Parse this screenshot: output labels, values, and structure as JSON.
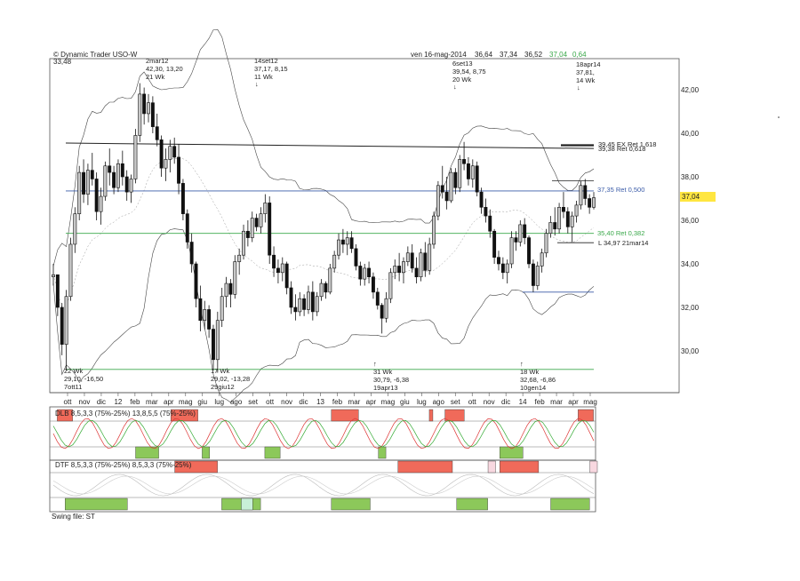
{
  "header": {
    "copyright": "© Dynamic Trader  USO-W",
    "low_value": "33,48",
    "date_label": "ven 16-mag-2014",
    "open": "36,64",
    "high": "37,34",
    "low": "36,52",
    "close": "37,04",
    "change": "0,64"
  },
  "current_price_tag": "37,04",
  "price_axis": [
    "42,00",
    "40,00",
    "38,00",
    "36,00",
    "34,00",
    "32,00",
    "30,00"
  ],
  "time_axis": [
    "ott",
    "nov",
    "dic",
    "12",
    "feb",
    "mar",
    "apr",
    "mag",
    "giu",
    "lug",
    "ago",
    "set",
    "ott",
    "nov",
    "dic",
    "13",
    "feb",
    "mar",
    "apr",
    "mag",
    "giu",
    "lug",
    "ago",
    "set",
    "ott",
    "nov",
    "dic",
    "14",
    "feb",
    "mar",
    "apr",
    "mag"
  ],
  "swing_labels": [
    {
      "lines": [
        "2mar12",
        "42,30, 13,20",
        "21 Wk"
      ]
    },
    {
      "lines": [
        "14set12",
        "37,17, 8,15",
        "11 Wk"
      ]
    },
    {
      "lines": [
        "6set13",
        "39,54, 8,75",
        "20 Wk"
      ]
    },
    {
      "lines": [
        "18apr14",
        "37,81,",
        "14 Wk"
      ]
    },
    {
      "lines": [
        "22 Wk",
        "29,10, -16,50",
        "7ott11"
      ]
    },
    {
      "lines": [
        "17 Wk",
        "29,02, -13,28",
        "29giu12"
      ]
    },
    {
      "lines": [
        "31 Wk",
        "30,79, -6,38",
        "19apr13"
      ]
    },
    {
      "lines": [
        "18 Wk",
        "32,68, -6,86",
        "10gen14"
      ]
    }
  ],
  "levels": {
    "ext_top": "39,45 EX Ret 1,618",
    "ext_bottom": "39,38 Ret 0,618",
    "ret_500": "37,35 Ret 0,500",
    "ret_382": "35,40 Ret 0,382",
    "low_mark": "L 34,97 21mar14"
  },
  "indicators": {
    "dlb_label": "DLB 8,5,3,3 (75%-25%) 13,8,5,5 (75%-25%)",
    "dtf_label": "DTF 8,5,3,3 (75%-25%) 8,5,3,3 (75%-25%)",
    "swing_file": "Swing file: ST"
  },
  "colors": {
    "up_candle": "#c8c8c8",
    "down_candle": "#111111",
    "ret_500_line": "#3a5ba8",
    "ret_382_line": "#3aa84a",
    "ext_line": "#222222",
    "tag_bg": "#ffe640",
    "red_zone": "#f06a5a",
    "green_zone": "#8cc85a",
    "pink_zone": "#f8d8e0",
    "mint_zone": "#c8f0d8"
  },
  "chart_data": {
    "type": "candlestick",
    "symbol": "USO-W",
    "timeframe": "weekly",
    "ylim": [
      29.0,
      43.2
    ],
    "xlim": [
      "2011-09",
      "2014-05"
    ],
    "candles": [
      [
        33.4,
        34.0,
        33.0,
        33.5
      ],
      [
        33.5,
        33.5,
        31.6,
        32.0
      ],
      [
        32.0,
        32.2,
        29.8,
        30.3
      ],
      [
        30.3,
        32.8,
        29.1,
        32.5
      ],
      [
        32.5,
        35.2,
        32.3,
        34.9
      ],
      [
        34.9,
        36.6,
        34.5,
        36.3
      ],
      [
        36.3,
        38.5,
        36.0,
        38.2
      ],
      [
        38.2,
        38.8,
        36.8,
        37.2
      ],
      [
        37.2,
        38.6,
        36.7,
        38.3
      ],
      [
        38.3,
        39.1,
        37.6,
        37.9
      ],
      [
        37.9,
        38.2,
        36.0,
        36.4
      ],
      [
        36.4,
        37.5,
        35.8,
        37.1
      ],
      [
        37.1,
        38.7,
        36.9,
        38.5
      ],
      [
        38.5,
        39.3,
        37.6,
        38.2
      ],
      [
        38.2,
        38.5,
        37.2,
        37.5
      ],
      [
        37.5,
        38.8,
        37.3,
        38.6
      ],
      [
        38.6,
        39.2,
        37.6,
        38.0
      ],
      [
        38.0,
        38.3,
        36.9,
        37.3
      ],
      [
        37.3,
        38.1,
        36.8,
        37.9
      ],
      [
        37.9,
        40.2,
        37.7,
        39.9
      ],
      [
        39.9,
        42.3,
        39.6,
        41.8
      ],
      [
        41.8,
        42.1,
        40.4,
        40.9
      ],
      [
        40.9,
        41.8,
        40.5,
        41.4
      ],
      [
        41.4,
        41.7,
        40.0,
        40.3
      ],
      [
        40.3,
        40.9,
        39.4,
        39.7
      ],
      [
        39.7,
        39.9,
        38.0,
        38.4
      ],
      [
        38.4,
        39.3,
        37.8,
        38.8
      ],
      [
        38.8,
        39.7,
        38.2,
        39.4
      ],
      [
        39.4,
        39.8,
        38.6,
        38.9
      ],
      [
        38.9,
        39.5,
        37.2,
        37.7
      ],
      [
        37.7,
        37.9,
        36.0,
        36.3
      ],
      [
        36.3,
        36.5,
        34.7,
        35.0
      ],
      [
        35.0,
        35.4,
        33.6,
        34.0
      ],
      [
        34.0,
        34.1,
        32.0,
        32.4
      ],
      [
        32.4,
        33.0,
        30.9,
        31.4
      ],
      [
        31.4,
        32.3,
        31.0,
        31.9
      ],
      [
        31.9,
        32.1,
        30.6,
        31.0
      ],
      [
        31.0,
        31.2,
        29.1,
        29.6
      ],
      [
        29.6,
        31.8,
        29.0,
        31.4
      ],
      [
        31.4,
        32.9,
        31.1,
        32.5
      ],
      [
        32.5,
        33.4,
        32.0,
        33.1
      ],
      [
        33.1,
        33.3,
        32.0,
        32.6
      ],
      [
        32.6,
        34.4,
        32.4,
        34.1
      ],
      [
        34.1,
        34.7,
        33.5,
        34.4
      ],
      [
        34.4,
        35.8,
        34.2,
        35.5
      ],
      [
        35.5,
        36.0,
        34.8,
        35.2
      ],
      [
        35.2,
        36.4,
        35.0,
        36.1
      ],
      [
        36.1,
        36.3,
        35.5,
        35.7
      ],
      [
        35.7,
        36.6,
        35.4,
        36.3
      ],
      [
        36.3,
        37.2,
        35.9,
        36.8
      ],
      [
        36.8,
        37.1,
        34.0,
        34.4
      ],
      [
        34.4,
        34.8,
        33.4,
        33.8
      ],
      [
        33.8,
        34.2,
        33.1,
        33.6
      ],
      [
        33.6,
        34.3,
        33.2,
        34.0
      ],
      [
        34.0,
        34.1,
        32.6,
        32.9
      ],
      [
        32.9,
        33.2,
        31.7,
        32.0
      ],
      [
        32.0,
        32.6,
        31.4,
        31.8
      ],
      [
        31.8,
        32.7,
        31.6,
        32.4
      ],
      [
        32.4,
        32.6,
        31.6,
        31.9
      ],
      [
        31.9,
        33.0,
        31.7,
        32.7
      ],
      [
        32.7,
        33.2,
        31.4,
        31.8
      ],
      [
        31.8,
        32.7,
        31.6,
        32.5
      ],
      [
        32.5,
        33.3,
        32.3,
        33.1
      ],
      [
        33.1,
        33.2,
        32.4,
        32.7
      ],
      [
        32.7,
        34.0,
        32.6,
        33.8
      ],
      [
        33.8,
        34.6,
        33.6,
        34.4
      ],
      [
        34.4,
        35.4,
        34.2,
        35.1
      ],
      [
        35.1,
        35.6,
        34.5,
        34.9
      ],
      [
        34.9,
        35.5,
        34.4,
        35.2
      ],
      [
        35.2,
        35.5,
        34.5,
        34.7
      ],
      [
        34.7,
        34.9,
        33.7,
        33.9
      ],
      [
        33.9,
        34.1,
        33.0,
        33.3
      ],
      [
        33.3,
        34.0,
        33.0,
        33.8
      ],
      [
        33.8,
        34.1,
        33.1,
        33.4
      ],
      [
        33.4,
        33.6,
        32.4,
        32.7
      ],
      [
        32.7,
        32.9,
        31.9,
        32.1
      ],
      [
        32.1,
        32.2,
        30.8,
        31.5
      ],
      [
        31.5,
        32.7,
        31.3,
        32.4
      ],
      [
        32.4,
        33.8,
        32.2,
        33.6
      ],
      [
        33.6,
        34.2,
        33.3,
        33.9
      ],
      [
        33.9,
        34.5,
        33.2,
        33.6
      ],
      [
        33.6,
        34.3,
        33.1,
        34.1
      ],
      [
        34.1,
        34.8,
        33.9,
        34.5
      ],
      [
        34.5,
        34.9,
        33.6,
        33.8
      ],
      [
        33.8,
        34.3,
        33.1,
        33.4
      ],
      [
        33.4,
        34.7,
        33.2,
        34.5
      ],
      [
        34.5,
        35.0,
        33.4,
        33.7
      ],
      [
        33.7,
        35.2,
        33.5,
        34.9
      ],
      [
        34.9,
        36.4,
        34.7,
        36.2
      ],
      [
        36.2,
        37.8,
        36.0,
        37.6
      ],
      [
        37.6,
        38.5,
        37.0,
        37.3
      ],
      [
        37.3,
        38.0,
        36.5,
        36.9
      ],
      [
        36.9,
        38.4,
        36.8,
        38.2
      ],
      [
        38.2,
        38.4,
        37.2,
        37.5
      ],
      [
        37.5,
        39.0,
        37.3,
        38.8
      ],
      [
        38.8,
        39.6,
        38.3,
        38.6
      ],
      [
        38.6,
        38.9,
        37.6,
        37.9
      ],
      [
        37.9,
        38.8,
        37.5,
        38.5
      ],
      [
        38.5,
        38.7,
        37.1,
        37.3
      ],
      [
        37.3,
        37.5,
        36.3,
        36.6
      ],
      [
        36.6,
        37.0,
        35.9,
        36.2
      ],
      [
        36.2,
        36.5,
        35.2,
        35.5
      ],
      [
        35.5,
        35.6,
        34.0,
        34.3
      ],
      [
        34.3,
        34.6,
        33.7,
        34.0
      ],
      [
        34.0,
        34.3,
        33.3,
        33.6
      ],
      [
        33.6,
        34.2,
        33.1,
        34.0
      ],
      [
        34.0,
        35.5,
        33.8,
        35.2
      ],
      [
        35.2,
        35.5,
        34.6,
        35.0
      ],
      [
        35.0,
        36.0,
        34.8,
        35.8
      ],
      [
        35.8,
        36.1,
        34.9,
        35.2
      ],
      [
        35.2,
        35.3,
        33.8,
        34.0
      ],
      [
        34.0,
        34.2,
        32.7,
        33.0
      ],
      [
        33.0,
        34.1,
        32.8,
        33.9
      ],
      [
        33.9,
        34.7,
        33.6,
        34.5
      ],
      [
        34.5,
        35.6,
        34.3,
        35.4
      ],
      [
        35.4,
        36.2,
        35.2,
        35.9
      ],
      [
        35.9,
        36.6,
        35.3,
        35.6
      ],
      [
        35.6,
        36.8,
        35.4,
        36.6
      ],
      [
        36.6,
        37.3,
        36.1,
        36.4
      ],
      [
        36.4,
        36.6,
        35.4,
        35.7
      ],
      [
        35.7,
        36.4,
        35.0,
        36.2
      ],
      [
        36.2,
        36.9,
        35.9,
        36.7
      ],
      [
        36.7,
        37.8,
        36.5,
        37.6
      ],
      [
        37.6,
        37.9,
        36.7,
        37.0
      ],
      [
        37.0,
        37.2,
        36.3,
        36.6
      ],
      [
        36.6,
        37.3,
        36.5,
        37.04
      ]
    ],
    "horizontal_levels": [
      {
        "value": 39.45,
        "label": "39,45 EX Ret 1,618"
      },
      {
        "value": 39.38,
        "label": "39,38 Ret 0,618"
      },
      {
        "value": 37.35,
        "label": "37,35 Ret 0,500"
      },
      {
        "value": 35.4,
        "label": "35,40 Ret 0,382"
      },
      {
        "value": 34.97,
        "label": "L 34,97 21mar14"
      }
    ],
    "swings": [
      {
        "date": "7ott11",
        "price": 29.1,
        "type": "low"
      },
      {
        "date": "2mar12",
        "price": 42.3,
        "type": "high"
      },
      {
        "date": "29giu12",
        "price": 29.02,
        "type": "low"
      },
      {
        "date": "14set12",
        "price": 37.17,
        "type": "high"
      },
      {
        "date": "19apr13",
        "price": 30.79,
        "type": "low"
      },
      {
        "date": "6set13",
        "price": 39.54,
        "type": "high"
      },
      {
        "date": "10gen14",
        "price": 32.68,
        "type": "low"
      },
      {
        "date": "18apr14",
        "price": 37.81,
        "type": "high"
      }
    ],
    "dlb_zones": [
      {
        "from": 1,
        "to": 4,
        "color": "red"
      },
      {
        "from": 21,
        "to": 26,
        "color": "green"
      },
      {
        "from": 30,
        "to": 36,
        "color": "red"
      },
      {
        "from": 38,
        "to": 39,
        "color": "green"
      },
      {
        "from": 54,
        "to": 57,
        "color": "green"
      },
      {
        "from": 71,
        "to": 77,
        "color": "red"
      },
      {
        "from": 83,
        "to": 84,
        "color": "green"
      },
      {
        "from": 96,
        "to": 96,
        "color": "red"
      },
      {
        "from": 100,
        "to": 104,
        "color": "red"
      },
      {
        "from": 114,
        "to": 119,
        "color": "green"
      },
      {
        "from": 134,
        "to": 137,
        "color": "red"
      }
    ],
    "dtf_zones": [
      {
        "from": 3,
        "to": 18,
        "color": "green"
      },
      {
        "from": 31,
        "to": 41,
        "color": "red"
      },
      {
        "from": 43,
        "to": 52,
        "color": "green"
      },
      {
        "from": 71,
        "to": 80,
        "color": "green"
      },
      {
        "from": 88,
        "to": 101,
        "color": "red"
      },
      {
        "from": 103,
        "to": 110,
        "color": "green"
      },
      {
        "from": 111,
        "to": 112,
        "color": "pink"
      },
      {
        "from": 114,
        "to": 123,
        "color": "red"
      },
      {
        "from": 127,
        "to": 136,
        "color": "green"
      },
      {
        "from": 137,
        "to": 138,
        "color": "pink"
      },
      {
        "from": 48,
        "to": 50,
        "color": "mint"
      }
    ]
  }
}
